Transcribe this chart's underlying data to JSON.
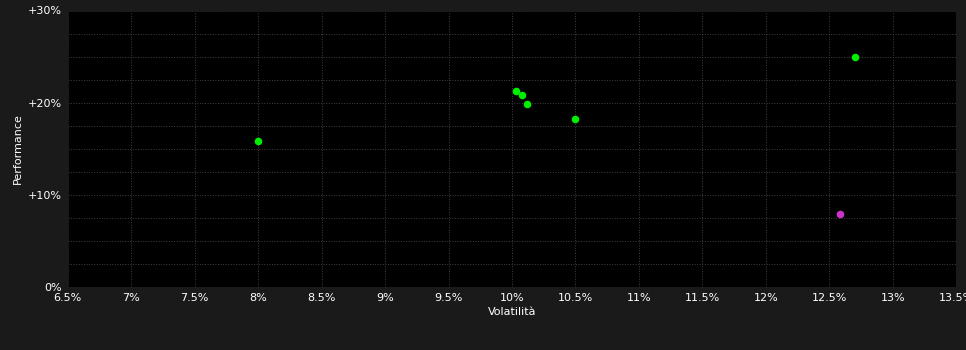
{
  "background_color": "#1a1a1a",
  "plot_bg_color": "#000000",
  "grid_color": "#404040",
  "text_color": "#ffffff",
  "xlabel": "Volatilità",
  "ylabel": "Performance",
  "xlim": [
    0.065,
    0.135
  ],
  "ylim": [
    0.0,
    0.3
  ],
  "xticks": [
    0.065,
    0.07,
    0.075,
    0.08,
    0.085,
    0.09,
    0.095,
    0.1,
    0.105,
    0.11,
    0.115,
    0.12,
    0.125,
    0.13,
    0.135
  ],
  "yticks": [
    0.0,
    0.05,
    0.1,
    0.15,
    0.2,
    0.25,
    0.3
  ],
  "ytick_labels_major": [
    0.0,
    0.1,
    0.2,
    0.3
  ],
  "ytick_major_labels": [
    "0%",
    "+10%",
    "+20%",
    "+30%"
  ],
  "green_points": [
    [
      0.08,
      0.158
    ],
    [
      0.1003,
      0.213
    ],
    [
      0.1008,
      0.208
    ],
    [
      0.1012,
      0.199
    ],
    [
      0.105,
      0.182
    ],
    [
      0.127,
      0.25
    ]
  ],
  "magenta_points": [
    [
      0.1258,
      0.079
    ]
  ],
  "green_color": "#00ee00",
  "magenta_color": "#cc33cc",
  "marker_size": 30,
  "label_fontsize": 8,
  "tick_fontsize": 8
}
